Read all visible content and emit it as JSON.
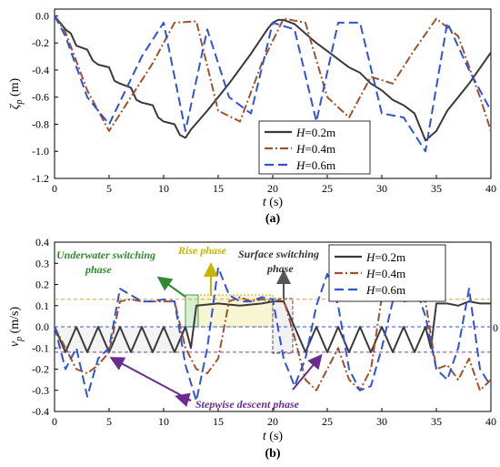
{
  "chart_data": [
    {
      "panel_label": "(a)",
      "type": "line",
      "ylabel_symbol": "ζ",
      "ylabel_sub": "p",
      "ylabel_unit": " (m)",
      "xlabel_var": "t",
      "xlabel_unit": " (s)",
      "xlim": [
        0,
        40
      ],
      "ylim": [
        -1.2,
        0.05
      ],
      "xticks": [
        0,
        5,
        10,
        15,
        20,
        25,
        30,
        35,
        40
      ],
      "yticks": [
        0.0,
        -0.2,
        -0.4,
        -0.6,
        -0.8,
        -1.0,
        -1.2
      ],
      "ytick_labels": [
        "0.0",
        "-0.2",
        "-0.4",
        "-0.6",
        "-0.8",
        "-1.0",
        "-1.2"
      ],
      "legend_position": "bottom-right",
      "series": [
        {
          "name_var": "H",
          "name_rest": "=0.2m",
          "color": "#3a3a3a",
          "dash": "solid",
          "x": [
            0,
            1,
            1.5,
            2,
            3,
            3.5,
            4,
            5,
            5.5,
            6,
            7,
            7.5,
            8,
            9,
            9.5,
            10,
            11,
            11.5,
            12,
            12.5,
            14,
            16,
            18,
            19.5,
            20,
            20.5,
            21,
            22,
            24,
            25,
            26,
            27,
            28,
            29,
            30,
            31,
            32,
            33,
            34,
            35,
            36,
            38,
            40
          ],
          "y": [
            0,
            -0.1,
            -0.13,
            -0.22,
            -0.25,
            -0.33,
            -0.36,
            -0.38,
            -0.48,
            -0.5,
            -0.53,
            -0.62,
            -0.64,
            -0.66,
            -0.75,
            -0.78,
            -0.8,
            -0.88,
            -0.9,
            -0.84,
            -0.7,
            -0.5,
            -0.28,
            -0.1,
            -0.05,
            -0.03,
            -0.03,
            -0.06,
            -0.2,
            -0.26,
            -0.32,
            -0.38,
            -0.42,
            -0.5,
            -0.55,
            -0.62,
            -0.66,
            -0.72,
            -0.92,
            -0.85,
            -0.7,
            -0.5,
            -0.27
          ]
        },
        {
          "name_var": "H",
          "name_rest": "=0.4m",
          "color": "#a0522d",
          "dash": "dashdot",
          "x": [
            0,
            1,
            3,
            5,
            7,
            9,
            11,
            13,
            15,
            17,
            19,
            21,
            23,
            25,
            27,
            29,
            31,
            33,
            35,
            37,
            39,
            40
          ],
          "y": [
            0,
            -0.12,
            -0.55,
            -0.85,
            -0.6,
            -0.35,
            -0.05,
            -0.04,
            -0.7,
            -0.78,
            -0.35,
            -0.02,
            -0.05,
            -0.6,
            -0.75,
            -0.45,
            -0.5,
            -0.25,
            -0.02,
            -0.15,
            -0.6,
            -0.85
          ]
        },
        {
          "name_var": "H",
          "name_rest": "=0.6m",
          "color": "#2f52d6",
          "dash": "dashed",
          "x": [
            0,
            1,
            3,
            5,
            8,
            10,
            12,
            14,
            16,
            18,
            20,
            22,
            24,
            26,
            28,
            30,
            32,
            34,
            36,
            38,
            40
          ],
          "y": [
            0,
            -0.15,
            -0.6,
            -0.8,
            -0.3,
            -0.05,
            -0.85,
            -0.1,
            -0.6,
            -0.72,
            -0.05,
            -0.1,
            -0.78,
            -0.05,
            -0.05,
            -0.72,
            -0.75,
            -1.0,
            -0.05,
            -0.4,
            -0.7
          ]
        }
      ]
    },
    {
      "panel_label": "(b)",
      "type": "line",
      "ylabel_symbol": "v",
      "ylabel_sub": "p",
      "ylabel_unit": " (m/s)",
      "xlabel_var": "t",
      "xlabel_unit": " (s)",
      "xlim": [
        0,
        40
      ],
      "ylim": [
        -0.4,
        0.4
      ],
      "xticks": [
        0,
        5,
        10,
        15,
        20,
        25,
        30,
        35,
        40
      ],
      "yticks": [
        0.4,
        0.3,
        0.2,
        0.1,
        0.0,
        -0.1,
        -0.2,
        -0.3,
        -0.4
      ],
      "ytick_labels": [
        "0.4",
        "0.3",
        "0.2",
        "0.1",
        "0.0",
        "-0.1",
        "-0.2",
        "-0.3",
        "-0.4"
      ],
      "right_zero_label": "0",
      "legend_position": "top-right",
      "reference_lines": [
        {
          "y": 0.0,
          "color": "#2f52d6"
        },
        {
          "y": -0.12,
          "color": "#8a3f9e"
        },
        {
          "y": 0.13,
          "color": "#d8a13b"
        }
      ],
      "annotations": [
        {
          "text_lines": [
            "Underwater switching",
            "phase"
          ],
          "color": "#2e8b2e"
        },
        {
          "text_lines": [
            "Rise phase"
          ],
          "color": "#c9b400"
        },
        {
          "text_lines": [
            "Surface switching",
            "phase"
          ],
          "color": "#333333"
        },
        {
          "text_lines": [
            "Stepwise descent phase"
          ],
          "color": "#6a2c8e"
        }
      ],
      "series": [
        {
          "name_var": "H",
          "name_rest": "=0.2m",
          "color": "#3a3a3a",
          "dash": "solid",
          "x": [
            0,
            1,
            2,
            3,
            4,
            5,
            6,
            7,
            8,
            9,
            10,
            11,
            12,
            12.5,
            13,
            15,
            17,
            19,
            20,
            21,
            22,
            23,
            24,
            25,
            26,
            27,
            28,
            29,
            30,
            31,
            32,
            33,
            34,
            34.5,
            35,
            36,
            37,
            38,
            39,
            40
          ],
          "y": [
            0,
            -0.12,
            0,
            -0.12,
            0,
            -0.12,
            0,
            -0.12,
            0,
            -0.12,
            0,
            -0.12,
            0,
            -0.1,
            0.1,
            0.11,
            0.1,
            0.11,
            0.12,
            0.12,
            0,
            -0.12,
            0,
            -0.12,
            0,
            -0.12,
            0,
            -0.12,
            0,
            -0.12,
            0,
            -0.12,
            0,
            -0.1,
            0.11,
            0.11,
            0.1,
            0.12,
            0.11,
            0.11
          ]
        },
        {
          "name_var": "H",
          "name_rest": "=0.4m",
          "color": "#a0522d",
          "dash": "dashdot",
          "x": [
            0,
            1,
            2,
            3,
            4,
            5,
            6,
            7,
            8,
            9,
            10,
            11,
            12,
            13,
            14,
            15,
            16,
            17,
            18,
            19,
            20,
            21,
            22,
            23,
            24,
            25,
            26,
            27,
            28,
            29,
            30,
            31,
            32,
            33,
            34,
            35,
            36,
            37,
            38,
            39,
            40
          ],
          "y": [
            0,
            -0.1,
            -0.2,
            -0.22,
            -0.18,
            -0.12,
            0.12,
            0.13,
            0.12,
            0.12,
            0.12,
            0.12,
            -0.1,
            -0.2,
            -0.22,
            -0.15,
            0.12,
            0.14,
            0.12,
            0.13,
            0.12,
            0.13,
            -0.05,
            -0.25,
            -0.3,
            -0.2,
            -0.1,
            -0.25,
            -0.3,
            -0.2,
            0.14,
            0.13,
            0.12,
            0.13,
            0.12,
            -0.2,
            -0.18,
            -0.25,
            -0.15,
            -0.3,
            -0.25
          ]
        },
        {
          "name_var": "H",
          "name_rest": "=0.6m",
          "color": "#2f52d6",
          "dash": "dashed",
          "x": [
            0,
            1,
            2,
            3,
            4,
            5,
            6,
            7,
            8,
            9,
            10,
            11,
            12,
            13,
            14,
            15,
            16,
            17,
            18,
            19,
            20,
            21,
            22,
            23,
            24,
            25,
            26,
            27,
            28,
            29,
            30,
            31,
            32,
            33,
            34,
            35,
            36,
            37,
            38,
            39,
            40
          ],
          "y": [
            0,
            -0.2,
            -0.1,
            -0.33,
            -0.15,
            -0.1,
            0.18,
            0.15,
            0.12,
            0.12,
            0.13,
            0.12,
            -0.18,
            -0.35,
            -0.1,
            0.28,
            0.15,
            0.12,
            0.12,
            0.14,
            0.13,
            -0.15,
            -0.28,
            -0.15,
            0.1,
            0.25,
            0.1,
            -0.2,
            -0.3,
            -0.28,
            -0.1,
            0.12,
            0.3,
            0.2,
            0.05,
            -0.2,
            -0.25,
            -0.1,
            0.18,
            -0.2,
            -0.28
          ]
        }
      ]
    }
  ]
}
